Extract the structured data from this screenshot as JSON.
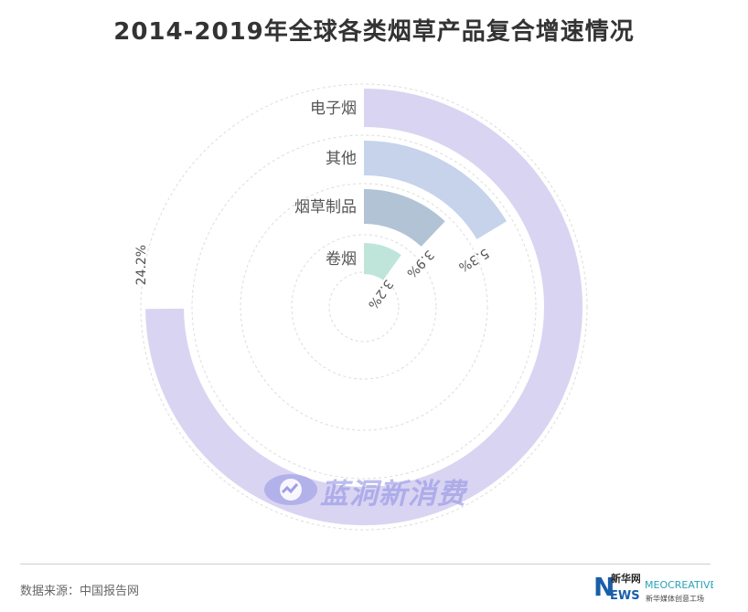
{
  "title": "2014-2019年全球各类烟草产品复合增速情况",
  "chart_data": {
    "type": "radial-bar",
    "title": "2014-2019年全球各类烟草产品复合增速情况",
    "unit": "%",
    "categories": [
      "电子烟",
      "其他",
      "烟草制品",
      "卷烟"
    ],
    "values": [
      24.2,
      5.3,
      3.9,
      3.2
    ],
    "value_labels": [
      "24.2%",
      "5.3%",
      "3.9%",
      "3.2%"
    ],
    "max": 32.3,
    "colors": [
      "#d9d4f2",
      "#c6d3ea",
      "#b1c3d5",
      "#bfe5db"
    ],
    "grid": true
  },
  "source": "数据来源：中国报告网",
  "watermark": "蓝洞新消费",
  "logos": {
    "news": "新华网",
    "meo": "MEOCREATIVE",
    "meo_sub": "新华媒体创意工场"
  }
}
